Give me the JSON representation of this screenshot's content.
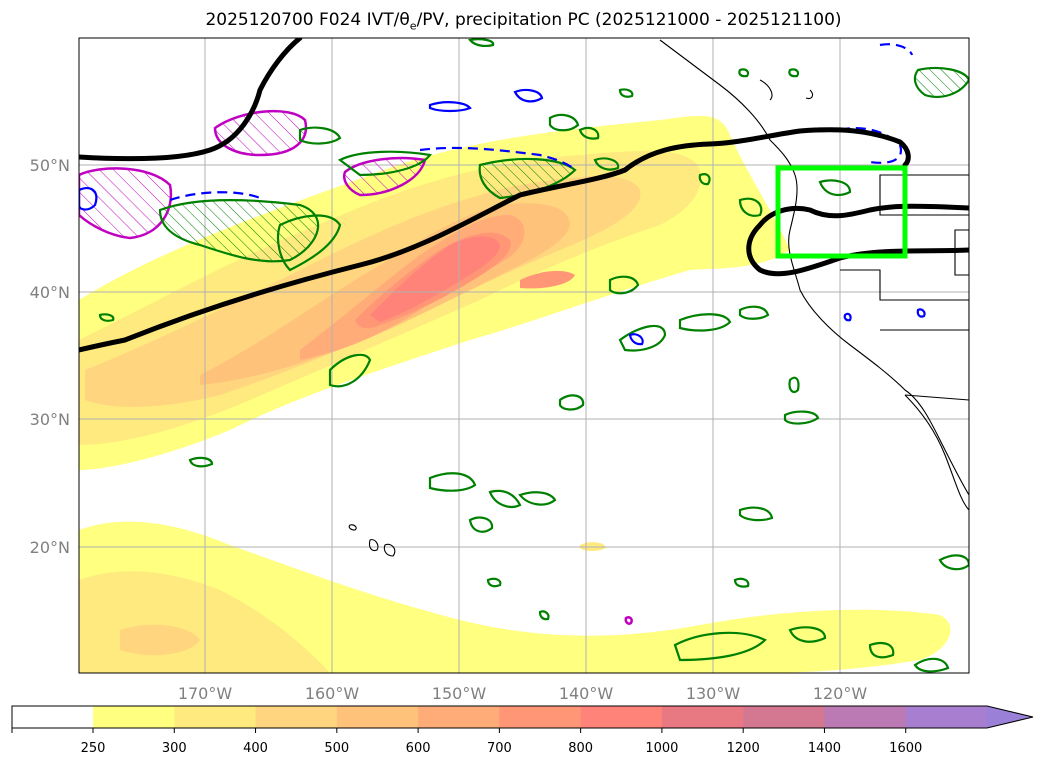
{
  "title": {
    "main": "2025120700 F024 IVT/θ",
    "sub": "e",
    "rest": "/PV, precipitation PC (2025121000 - 2025121100)"
  },
  "map": {
    "lat_ticks": [
      "50°N",
      "40°N",
      "30°N",
      "20°N"
    ],
    "lon_ticks": [
      "170°W",
      "160°W",
      "150°W",
      "140°W",
      "130°W",
      "120°W"
    ],
    "highlight_box_color": "#00ff00",
    "jet_line_color": "#000000",
    "precip_contour_color": "#008000",
    "negative_contour_color": "#0000ff",
    "pv_contour_color": "#c000c0"
  },
  "colorbar": {
    "levels": [
      "250",
      "300",
      "400",
      "500",
      "600",
      "700",
      "800",
      "1000",
      "1200",
      "1400",
      "1600"
    ],
    "colors": [
      "#ffff80",
      "#ffea7f",
      "#ffd67f",
      "#ffc27a",
      "#ffac78",
      "#ff9777",
      "#ff8378",
      "#e87882",
      "#d37890",
      "#bb7ab4",
      "#a87fd0"
    ],
    "extend_color": "#9a80d6"
  }
}
